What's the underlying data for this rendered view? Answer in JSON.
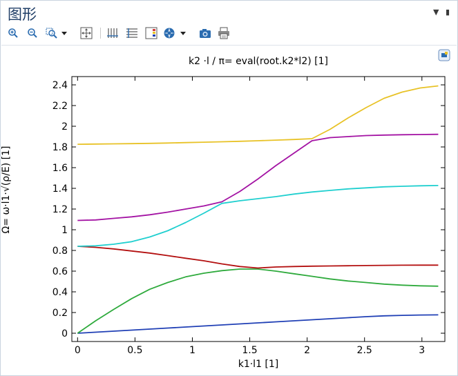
{
  "window": {
    "title": "图形",
    "controls": {
      "menu_icon": "dropdown-triangle-icon",
      "close_icon": "close-icon"
    }
  },
  "toolbar": {
    "buttons": [
      {
        "name": "zoom-in",
        "icon": "zoom-in-icon"
      },
      {
        "name": "zoom-out",
        "icon": "zoom-out-icon"
      },
      {
        "name": "zoom-box",
        "icon": "zoom-box-icon"
      },
      {
        "name": "zoom-extents",
        "icon": "zoom-extents-icon"
      },
      {
        "name": "x-axis-lock",
        "icon": "x-axis-icon"
      },
      {
        "name": "y-axis-lock",
        "icon": "y-axis-icon"
      },
      {
        "name": "legend",
        "icon": "legend-icon"
      },
      {
        "name": "scene-light",
        "icon": "scene-light-icon"
      },
      {
        "name": "image-snapshot",
        "icon": "camera-icon"
      },
      {
        "name": "print",
        "icon": "printer-icon"
      }
    ]
  },
  "colors": {
    "title": "#1f3d66",
    "toolbar_blue": "#2b6cb0",
    "series_blue": "#1f3fb5",
    "series_green": "#2eaa3c",
    "series_red": "#b30f0f",
    "series_cyan": "#1fcfcf",
    "series_magenta": "#a312a3",
    "series_yellow": "#e8c226"
  },
  "chart_data": {
    "type": "line",
    "title": "k2 ·l / π= eval(root.k2*l2) [1]",
    "xlabel": "k1·l1 [1]",
    "ylabel": "Ω= ω·l1·√(ρ/E) [1]",
    "xlim": [
      -0.05,
      3.2
    ],
    "ylim": [
      -0.08,
      2.48
    ],
    "x_ticks": [
      0,
      0.5,
      1,
      1.5,
      2,
      2.5,
      3
    ],
    "x_tick_labels": [
      "0",
      "0.5",
      "1",
      "1.5",
      "2",
      "2.5",
      "3"
    ],
    "y_ticks": [
      0,
      0.2,
      0.4,
      0.6,
      0.8,
      1,
      1.2,
      1.4,
      1.6,
      1.8,
      2,
      2.2,
      2.4
    ],
    "y_tick_labels": [
      "0",
      "0.2",
      "0.4",
      "0.6",
      "0.8",
      "1",
      "1.2",
      "1.4",
      "1.6",
      "1.8",
      "2",
      "2.2",
      "2.4"
    ],
    "grid": false,
    "x": [
      0,
      0.157,
      0.314,
      0.471,
      0.628,
      0.785,
      0.942,
      1.1,
      1.257,
      1.414,
      1.571,
      1.728,
      1.885,
      2.042,
      2.199,
      2.356,
      2.513,
      2.67,
      2.827,
      2.985,
      3.142
    ],
    "series": [
      {
        "color": "#1f3fb5",
        "values": [
          0.0,
          0.01,
          0.02,
          0.03,
          0.04,
          0.05,
          0.06,
          0.07,
          0.08,
          0.09,
          0.1,
          0.11,
          0.12,
          0.13,
          0.14,
          0.15,
          0.16,
          0.168,
          0.173,
          0.176,
          0.177
        ]
      },
      {
        "color": "#2eaa3c",
        "values": [
          0.0,
          0.12,
          0.23,
          0.335,
          0.425,
          0.49,
          0.545,
          0.58,
          0.605,
          0.62,
          0.62,
          0.6,
          0.575,
          0.55,
          0.525,
          0.505,
          0.49,
          0.475,
          0.465,
          0.458,
          0.455
        ]
      },
      {
        "color": "#b30f0f",
        "values": [
          0.84,
          0.83,
          0.815,
          0.795,
          0.775,
          0.75,
          0.725,
          0.7,
          0.67,
          0.645,
          0.63,
          0.64,
          0.645,
          0.648,
          0.65,
          0.652,
          0.654,
          0.656,
          0.657,
          0.658,
          0.658
        ]
      },
      {
        "color": "#1fcfcf",
        "values": [
          0.84,
          0.845,
          0.86,
          0.885,
          0.93,
          0.99,
          1.07,
          1.16,
          1.255,
          1.28,
          1.3,
          1.32,
          1.345,
          1.365,
          1.38,
          1.395,
          1.405,
          1.415,
          1.42,
          1.425,
          1.427
        ]
      },
      {
        "color": "#a312a3",
        "values": [
          1.09,
          1.095,
          1.11,
          1.125,
          1.145,
          1.17,
          1.2,
          1.23,
          1.27,
          1.37,
          1.49,
          1.62,
          1.74,
          1.86,
          1.89,
          1.9,
          1.91,
          1.915,
          1.918,
          1.92,
          1.922
        ]
      },
      {
        "color": "#e8c226",
        "values": [
          1.826,
          1.828,
          1.83,
          1.832,
          1.835,
          1.838,
          1.842,
          1.846,
          1.85,
          1.855,
          1.86,
          1.866,
          1.872,
          1.88,
          1.97,
          2.08,
          2.18,
          2.27,
          2.33,
          2.37,
          2.39
        ]
      }
    ]
  }
}
